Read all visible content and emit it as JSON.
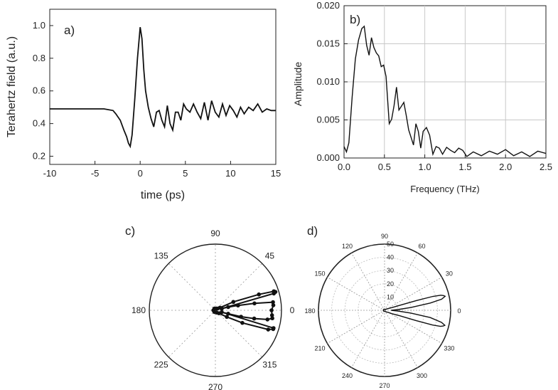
{
  "chart_data": [
    {
      "id": "a",
      "type": "line",
      "panel_label": "a)",
      "xlabel": "time (ps)",
      "ylabel": "Terahertz field (a.u.)",
      "xlim": [
        -10,
        15
      ],
      "ylim": [
        0.15,
        1.1
      ],
      "xticks": [
        "-10",
        "-5",
        "0",
        "5",
        "10",
        "15"
      ],
      "yticks": [
        "0.2",
        "0.4",
        "0.6",
        "0.8",
        "1.0"
      ],
      "grid": false,
      "series": [
        {
          "x": [
            -10,
            -9,
            -8,
            -7,
            -6,
            -5,
            -4,
            -3,
            -2.7,
            -2.2,
            -1.8,
            -1.5,
            -1.3,
            -1.1,
            -0.9,
            -0.6,
            -0.3,
            0,
            0.2,
            0.4,
            0.6,
            0.9,
            1.2,
            1.5,
            1.8,
            2.1,
            2.4,
            2.7,
            3.0,
            3.3,
            3.6,
            3.9,
            4.2,
            4.5,
            4.8,
            5.1,
            5.5,
            5.9,
            6.3,
            6.7,
            7.1,
            7.5,
            7.9,
            8.3,
            8.7,
            9.1,
            9.5,
            9.9,
            10.3,
            10.7,
            11.1,
            11.5,
            12,
            12.5,
            13,
            13.5,
            14,
            14.5,
            15
          ],
          "y": [
            0.49,
            0.49,
            0.49,
            0.49,
            0.49,
            0.49,
            0.49,
            0.48,
            0.46,
            0.42,
            0.36,
            0.32,
            0.28,
            0.26,
            0.33,
            0.55,
            0.8,
            0.99,
            0.92,
            0.73,
            0.6,
            0.5,
            0.43,
            0.38,
            0.47,
            0.48,
            0.42,
            0.38,
            0.51,
            0.4,
            0.36,
            0.47,
            0.47,
            0.42,
            0.52,
            0.49,
            0.47,
            0.52,
            0.47,
            0.43,
            0.53,
            0.42,
            0.54,
            0.47,
            0.44,
            0.52,
            0.45,
            0.51,
            0.48,
            0.44,
            0.5,
            0.46,
            0.5,
            0.48,
            0.52,
            0.47,
            0.49,
            0.48,
            0.48
          ]
        }
      ]
    },
    {
      "id": "b",
      "type": "line",
      "panel_label": "b)",
      "xlabel": "Frequency (THz)",
      "ylabel": "Amplitude",
      "xlim": [
        0,
        2.5
      ],
      "ylim": [
        0,
        0.02
      ],
      "xticks": [
        "0.0",
        "0.5",
        "1.0",
        "1.5",
        "2.0",
        "2.5"
      ],
      "yticks": [
        "0.000",
        "0.005",
        "0.010",
        "0.015",
        "0.020"
      ],
      "grid": true,
      "series": [
        {
          "x": [
            0.0,
            0.03,
            0.06,
            0.1,
            0.14,
            0.18,
            0.22,
            0.25,
            0.28,
            0.31,
            0.34,
            0.37,
            0.4,
            0.43,
            0.46,
            0.49,
            0.52,
            0.56,
            0.59,
            0.62,
            0.65,
            0.68,
            0.71,
            0.74,
            0.77,
            0.8,
            0.83,
            0.86,
            0.89,
            0.92,
            0.95,
            0.98,
            1.02,
            1.06,
            1.1,
            1.14,
            1.18,
            1.22,
            1.27,
            1.32,
            1.37,
            1.42,
            1.47,
            1.52,
            1.6,
            1.7,
            1.8,
            1.9,
            2.0,
            2.1,
            2.2,
            2.3,
            2.4,
            2.5
          ],
          "y": [
            0.0015,
            0.0008,
            0.002,
            0.008,
            0.013,
            0.0155,
            0.017,
            0.0173,
            0.0148,
            0.0135,
            0.0158,
            0.0145,
            0.0138,
            0.0134,
            0.012,
            0.0122,
            0.0107,
            0.0045,
            0.0051,
            0.0069,
            0.0093,
            0.0063,
            0.0068,
            0.0073,
            0.0056,
            0.0037,
            0.0027,
            0.0017,
            0.0045,
            0.0035,
            0.0013,
            0.0035,
            0.004,
            0.003,
            0.0005,
            0.0015,
            0.0013,
            0.0005,
            0.0014,
            0.001,
            0.0007,
            0.0013,
            0.001,
            0.0002,
            0.0008,
            0.0003,
            0.0009,
            0.0005,
            0.0011,
            0.0003,
            0.0008,
            0.0002,
            0.0009,
            0.0006
          ]
        }
      ]
    },
    {
      "id": "c",
      "type": "line",
      "subtype": "polar",
      "panel_label": "c)",
      "angle_labels": [
        "0",
        "45",
        "90",
        "135",
        "180",
        "225",
        "270",
        "315"
      ],
      "grid": true,
      "series": [
        {
          "theta_deg": [
            0,
            5,
            8,
            10,
            12,
            14,
            15,
            16,
            17,
            18,
            20,
            25,
            30,
            40,
            60,
            120,
            180,
            240,
            300,
            320,
            330,
            335,
            340,
            342,
            343,
            344,
            345,
            346,
            348,
            350,
            352,
            355
          ],
          "r": [
            0.85,
            0.88,
            0.88,
            0.6,
            0.35,
            0.2,
            0.1,
            0.92,
            0.95,
            0.93,
            0.7,
            0.3,
            0.08,
            0.04,
            0.03,
            0.03,
            0.03,
            0.03,
            0.04,
            0.07,
            0.2,
            0.45,
            0.85,
            0.92,
            0.92,
            0.1,
            0.2,
            0.4,
            0.6,
            0.8,
            0.87,
            0.86
          ]
        }
      ]
    },
    {
      "id": "d",
      "type": "line",
      "subtype": "polar",
      "panel_label": "d)",
      "angle_labels": [
        "0",
        "30",
        "60",
        "90",
        "120",
        "150",
        "180",
        "210",
        "240",
        "270",
        "300",
        "330"
      ],
      "radial_labels": [
        "10",
        "20",
        "30",
        "40",
        "50"
      ],
      "rmax": 50,
      "grid": true,
      "series": [
        {
          "theta_deg": [
            0,
            3,
            6,
            9,
            11,
            13,
            14,
            15,
            16,
            17,
            18,
            20,
            25,
            30,
            40,
            60,
            120,
            180,
            240,
            300,
            320,
            330,
            335,
            340,
            342,
            343,
            344,
            345,
            346,
            348,
            351,
            354,
            357
          ],
          "r": [
            5,
            10,
            20,
            35,
            44,
            47,
            46,
            44,
            38,
            25,
            12,
            6,
            3,
            2,
            1,
            1,
            1,
            1,
            1,
            1,
            2,
            3,
            6,
            12,
            25,
            38,
            44,
            46,
            47,
            44,
            35,
            20,
            10
          ]
        }
      ]
    }
  ]
}
